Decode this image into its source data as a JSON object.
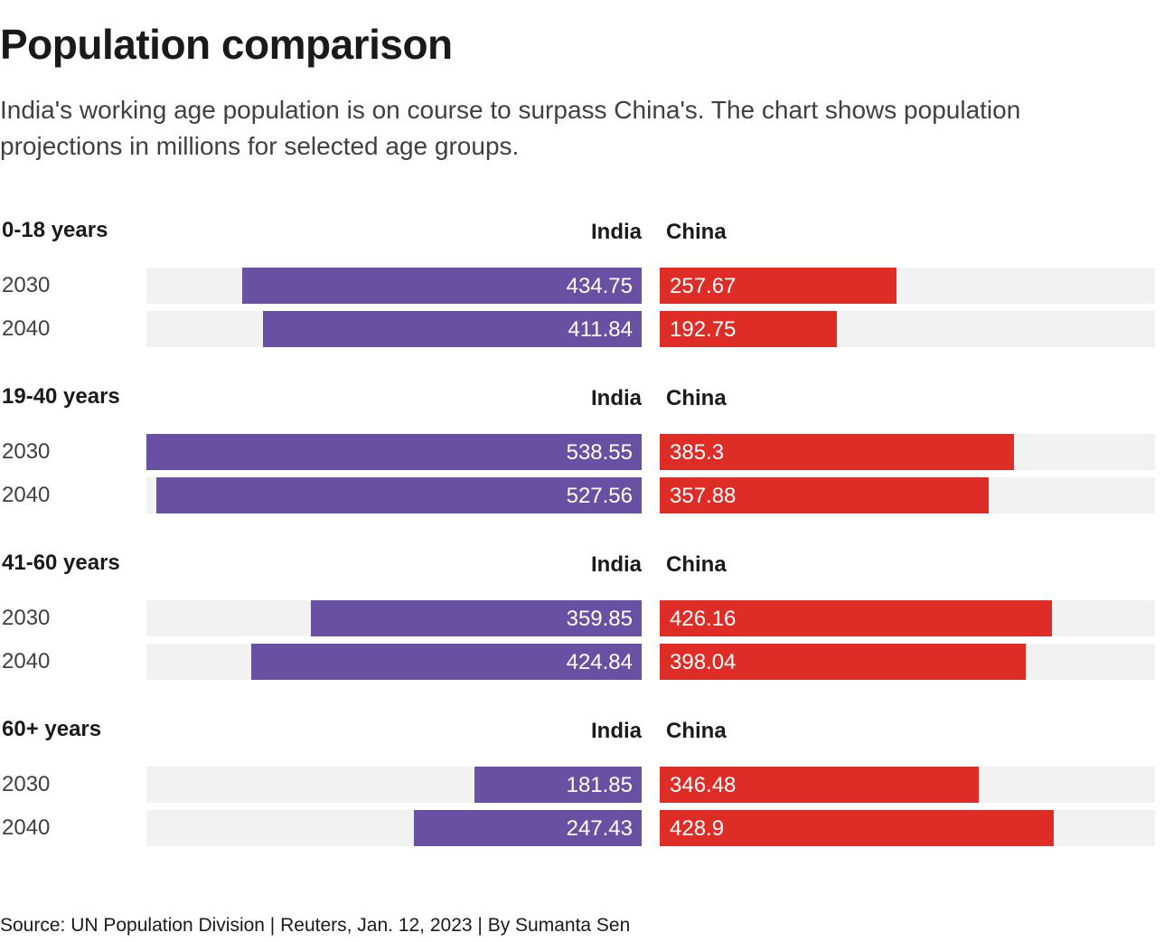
{
  "title": "Population comparison",
  "subtitle": "India's working age population is on course to surpass China's. The chart shows population projections in millions for selected age groups.",
  "source": "Source: UN Population Division | Reuters, Jan. 12, 2023 | By Sumanta Sen",
  "colors": {
    "india": "#6950a3",
    "china": "#de2d26",
    "track": "#f2f2f2"
  },
  "chart_data": {
    "type": "bar",
    "orientation": "horizontal-diverging",
    "unit": "millions",
    "xlim": [
      0,
      538.55
    ],
    "series_names": [
      "India",
      "China"
    ],
    "groups": [
      {
        "label": "0-18 years",
        "rows": [
          {
            "year": "2030",
            "india": 434.75,
            "china": 257.67
          },
          {
            "year": "2040",
            "india": 411.84,
            "china": 192.75
          }
        ]
      },
      {
        "label": "19-40 years",
        "rows": [
          {
            "year": "2030",
            "india": 538.55,
            "china": 385.3
          },
          {
            "year": "2040",
            "india": 527.56,
            "china": 357.88
          }
        ]
      },
      {
        "label": "41-60 years",
        "rows": [
          {
            "year": "2030",
            "india": 359.85,
            "china": 426.16
          },
          {
            "year": "2040",
            "india": 424.84,
            "china": 398.04
          }
        ]
      },
      {
        "label": "60+ years",
        "rows": [
          {
            "year": "2030",
            "india": 181.85,
            "china": 346.48
          },
          {
            "year": "2040",
            "india": 247.43,
            "china": 428.9
          }
        ]
      }
    ]
  }
}
